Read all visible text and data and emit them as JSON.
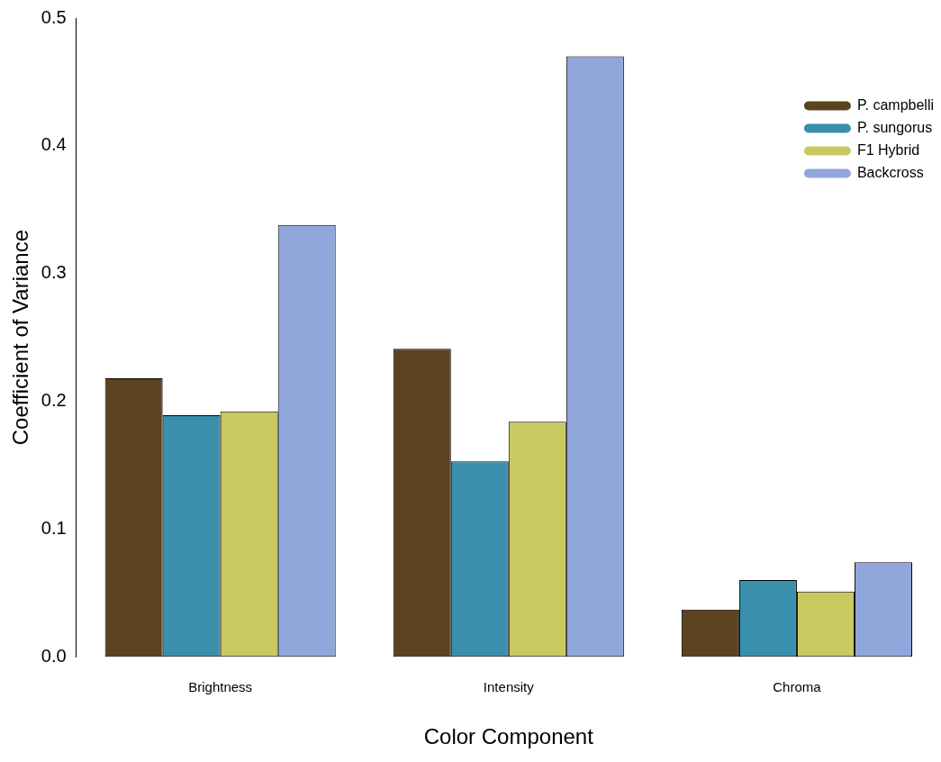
{
  "chart_data": {
    "type": "bar",
    "xlabel": "Color Component",
    "ylabel": "Coefficient of Variance",
    "categories": [
      "Brightness",
      "Intensity",
      "Chroma"
    ],
    "series": [
      {
        "name": "P. campbelli",
        "color": "#5c4320",
        "values": [
          0.218,
          0.241,
          0.037
        ]
      },
      {
        "name": "P. sungorus",
        "color": "#3a8fad",
        "values": [
          0.189,
          0.153,
          0.06
        ]
      },
      {
        "name": "F1 Hybrid",
        "color": "#c8ca60",
        "values": [
          0.192,
          0.184,
          0.051
        ]
      },
      {
        "name": "Backcross",
        "color": "#91a6db",
        "values": [
          0.338,
          0.47,
          0.074
        ]
      }
    ],
    "ylim": [
      0,
      0.5
    ],
    "yticks": [
      {
        "value": 0,
        "label": "0.0"
      },
      0.1,
      0.2,
      0.3,
      0.4,
      0.5
    ],
    "grid": false,
    "legend": "top right"
  }
}
